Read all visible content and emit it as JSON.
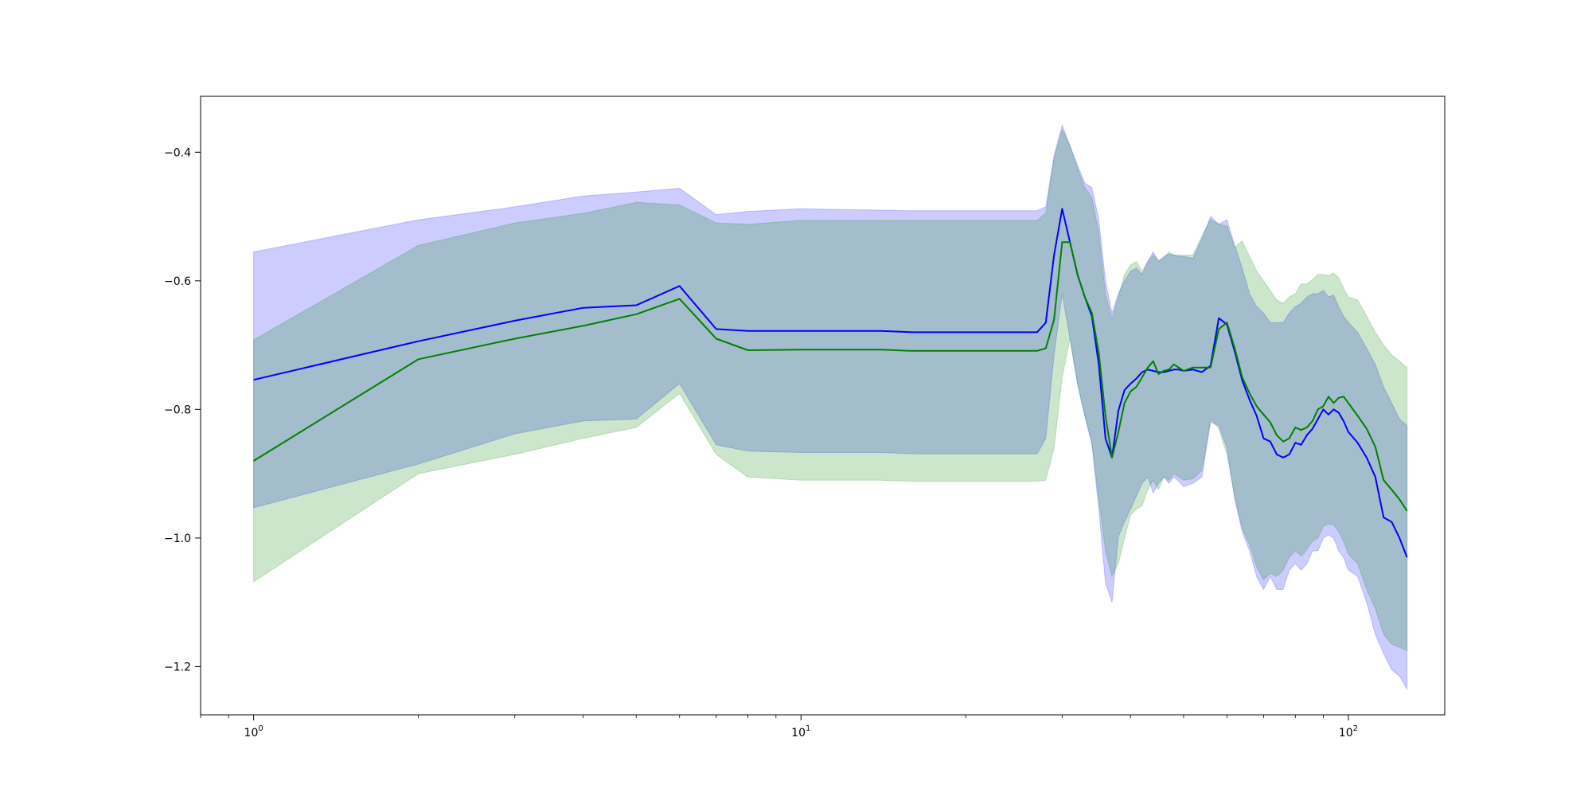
{
  "chart_data": {
    "type": "line",
    "title": "",
    "xlabel": "",
    "ylabel": "",
    "xscale": "log",
    "xlim": [
      0.8,
      150
    ],
    "ylim": [
      -1.275,
      -0.313
    ],
    "grid": false,
    "legend": "none",
    "x_ticks": [
      {
        "value": 1,
        "base": "10",
        "exp": "0"
      },
      {
        "value": 10,
        "base": "10",
        "exp": "1"
      },
      {
        "value": 100,
        "base": "10",
        "exp": "2"
      }
    ],
    "y_ticks": [
      {
        "value": -0.4,
        "label": "−0.4"
      },
      {
        "value": -0.6,
        "label": "−0.6"
      },
      {
        "value": -0.8,
        "label": "−0.8"
      },
      {
        "value": -1.0,
        "label": "−1.0"
      },
      {
        "value": -1.2,
        "label": "−1.2"
      }
    ],
    "series": [
      {
        "color": "#0000ff",
        "band_color": "#0000ff",
        "band_alpha": 0.2,
        "x": [
          1,
          2,
          3,
          4,
          5,
          6,
          7,
          8,
          10,
          14,
          16,
          20,
          27,
          28,
          29,
          30,
          31,
          32,
          33,
          34,
          35,
          36,
          37,
          38,
          39,
          40,
          41,
          42,
          43,
          44,
          45,
          46,
          47,
          48,
          49,
          50,
          52,
          54,
          56,
          58,
          60,
          62,
          64,
          66,
          68,
          70,
          72,
          74,
          76,
          78,
          80,
          82,
          84,
          86,
          88,
          90,
          92,
          94,
          96,
          98,
          100,
          104,
          108,
          112,
          116,
          120,
          124,
          128
        ],
        "y": [
          -0.754,
          -0.694,
          -0.662,
          -0.642,
          -0.638,
          -0.608,
          -0.675,
          -0.678,
          -0.678,
          -0.678,
          -0.68,
          -0.68,
          -0.68,
          -0.665,
          -0.56,
          -0.488,
          -0.54,
          -0.59,
          -0.625,
          -0.655,
          -0.73,
          -0.845,
          -0.875,
          -0.802,
          -0.77,
          -0.76,
          -0.752,
          -0.742,
          -0.738,
          -0.74,
          -0.742,
          -0.742,
          -0.74,
          -0.738,
          -0.738,
          -0.74,
          -0.738,
          -0.742,
          -0.732,
          -0.658,
          -0.668,
          -0.71,
          -0.755,
          -0.785,
          -0.81,
          -0.845,
          -0.85,
          -0.87,
          -0.875,
          -0.87,
          -0.852,
          -0.855,
          -0.84,
          -0.83,
          -0.815,
          -0.8,
          -0.808,
          -0.8,
          -0.805,
          -0.818,
          -0.835,
          -0.852,
          -0.875,
          -0.905,
          -0.968,
          -0.975,
          -1.0,
          -1.03
        ],
        "upper": [
          -0.555,
          -0.505,
          -0.485,
          -0.468,
          -0.462,
          -0.456,
          -0.497,
          -0.492,
          -0.488,
          -0.49,
          -0.491,
          -0.491,
          -0.491,
          -0.485,
          -0.405,
          -0.358,
          -0.39,
          -0.42,
          -0.448,
          -0.455,
          -0.505,
          -0.6,
          -0.65,
          -0.62,
          -0.6,
          -0.585,
          -0.58,
          -0.59,
          -0.57,
          -0.555,
          -0.57,
          -0.562,
          -0.558,
          -0.56,
          -0.562,
          -0.562,
          -0.565,
          -0.535,
          -0.5,
          -0.512,
          -0.505,
          -0.545,
          -0.58,
          -0.62,
          -0.64,
          -0.65,
          -0.665,
          -0.665,
          -0.665,
          -0.65,
          -0.64,
          -0.635,
          -0.625,
          -0.62,
          -0.62,
          -0.615,
          -0.625,
          -0.622,
          -0.64,
          -0.655,
          -0.665,
          -0.68,
          -0.705,
          -0.73,
          -0.765,
          -0.79,
          -0.815,
          -0.825
        ],
        "lower": [
          -0.953,
          -0.885,
          -0.838,
          -0.818,
          -0.815,
          -0.76,
          -0.855,
          -0.865,
          -0.867,
          -0.867,
          -0.869,
          -0.869,
          -0.869,
          -0.845,
          -0.715,
          -0.62,
          -0.69,
          -0.76,
          -0.81,
          -0.855,
          -0.955,
          -1.07,
          -1.1,
          -0.998,
          -0.975,
          -0.955,
          -0.935,
          -0.915,
          -0.905,
          -0.93,
          -0.915,
          -0.905,
          -0.915,
          -0.905,
          -0.912,
          -0.92,
          -0.915,
          -0.905,
          -0.82,
          -0.825,
          -0.86,
          -0.94,
          -0.99,
          -1.02,
          -1.06,
          -1.08,
          -1.06,
          -1.08,
          -1.08,
          -1.05,
          -1.04,
          -1.05,
          -1.04,
          -1.02,
          -1.02,
          -1.0,
          -0.995,
          -1.0,
          -1.02,
          -1.03,
          -1.05,
          -1.06,
          -1.1,
          -1.15,
          -1.18,
          -1.205,
          -1.215,
          -1.235
        ]
      },
      {
        "color": "#008000",
        "band_color": "#008000",
        "band_alpha": 0.2,
        "x": [
          1,
          2,
          3,
          4,
          5,
          6,
          7,
          8,
          10,
          14,
          16,
          20,
          27,
          28,
          29,
          30,
          31,
          32,
          33,
          34,
          35,
          36,
          37,
          38,
          39,
          40,
          41,
          42,
          43,
          44,
          45,
          46,
          47,
          48,
          49,
          50,
          52,
          54,
          56,
          58,
          60,
          62,
          64,
          66,
          68,
          70,
          72,
          74,
          76,
          78,
          80,
          82,
          84,
          86,
          88,
          90,
          92,
          94,
          96,
          98,
          100,
          104,
          108,
          112,
          116,
          120,
          124,
          128
        ],
        "y": [
          -0.88,
          -0.722,
          -0.69,
          -0.67,
          -0.652,
          -0.628,
          -0.69,
          -0.708,
          -0.707,
          -0.707,
          -0.709,
          -0.709,
          -0.709,
          -0.705,
          -0.66,
          -0.54,
          -0.54,
          -0.59,
          -0.625,
          -0.65,
          -0.712,
          -0.81,
          -0.875,
          -0.835,
          -0.79,
          -0.772,
          -0.765,
          -0.75,
          -0.735,
          -0.725,
          -0.745,
          -0.74,
          -0.738,
          -0.73,
          -0.735,
          -0.74,
          -0.735,
          -0.735,
          -0.735,
          -0.675,
          -0.665,
          -0.705,
          -0.75,
          -0.775,
          -0.795,
          -0.808,
          -0.82,
          -0.84,
          -0.85,
          -0.845,
          -0.828,
          -0.832,
          -0.828,
          -0.818,
          -0.8,
          -0.795,
          -0.78,
          -0.79,
          -0.782,
          -0.78,
          -0.79,
          -0.81,
          -0.83,
          -0.858,
          -0.91,
          -0.925,
          -0.94,
          -0.958
        ],
        "upper": [
          -0.692,
          -0.545,
          -0.51,
          -0.495,
          -0.478,
          -0.482,
          -0.51,
          -0.512,
          -0.506,
          -0.506,
          -0.506,
          -0.506,
          -0.506,
          -0.495,
          -0.41,
          -0.365,
          -0.39,
          -0.425,
          -0.455,
          -0.47,
          -0.525,
          -0.62,
          -0.66,
          -0.625,
          -0.59,
          -0.575,
          -0.57,
          -0.585,
          -0.57,
          -0.56,
          -0.568,
          -0.565,
          -0.555,
          -0.56,
          -0.56,
          -0.56,
          -0.56,
          -0.53,
          -0.505,
          -0.512,
          -0.515,
          -0.548,
          -0.538,
          -0.562,
          -0.585,
          -0.6,
          -0.615,
          -0.63,
          -0.635,
          -0.625,
          -0.62,
          -0.605,
          -0.605,
          -0.598,
          -0.59,
          -0.59,
          -0.592,
          -0.588,
          -0.595,
          -0.612,
          -0.625,
          -0.63,
          -0.655,
          -0.68,
          -0.7,
          -0.715,
          -0.725,
          -0.735
        ],
        "lower": [
          -1.068,
          -0.9,
          -0.87,
          -0.845,
          -0.828,
          -0.775,
          -0.87,
          -0.905,
          -0.91,
          -0.91,
          -0.912,
          -0.912,
          -0.912,
          -0.91,
          -0.86,
          -0.75,
          -0.69,
          -0.76,
          -0.81,
          -0.85,
          -0.94,
          -1.02,
          -1.06,
          -1.04,
          -1.0,
          -0.965,
          -0.955,
          -0.95,
          -0.925,
          -0.91,
          -0.925,
          -0.905,
          -0.91,
          -0.9,
          -0.905,
          -0.91,
          -0.908,
          -0.895,
          -0.815,
          -0.83,
          -0.87,
          -0.935,
          -0.985,
          -1.01,
          -1.045,
          -1.065,
          -1.055,
          -1.06,
          -1.05,
          -1.03,
          -1.02,
          -1.028,
          -1.018,
          -1.005,
          -1.0,
          -0.982,
          -0.978,
          -0.98,
          -0.99,
          -1.005,
          -1.025,
          -1.04,
          -1.08,
          -1.11,
          -1.15,
          -1.165,
          -1.17,
          -1.175
        ]
      }
    ]
  }
}
